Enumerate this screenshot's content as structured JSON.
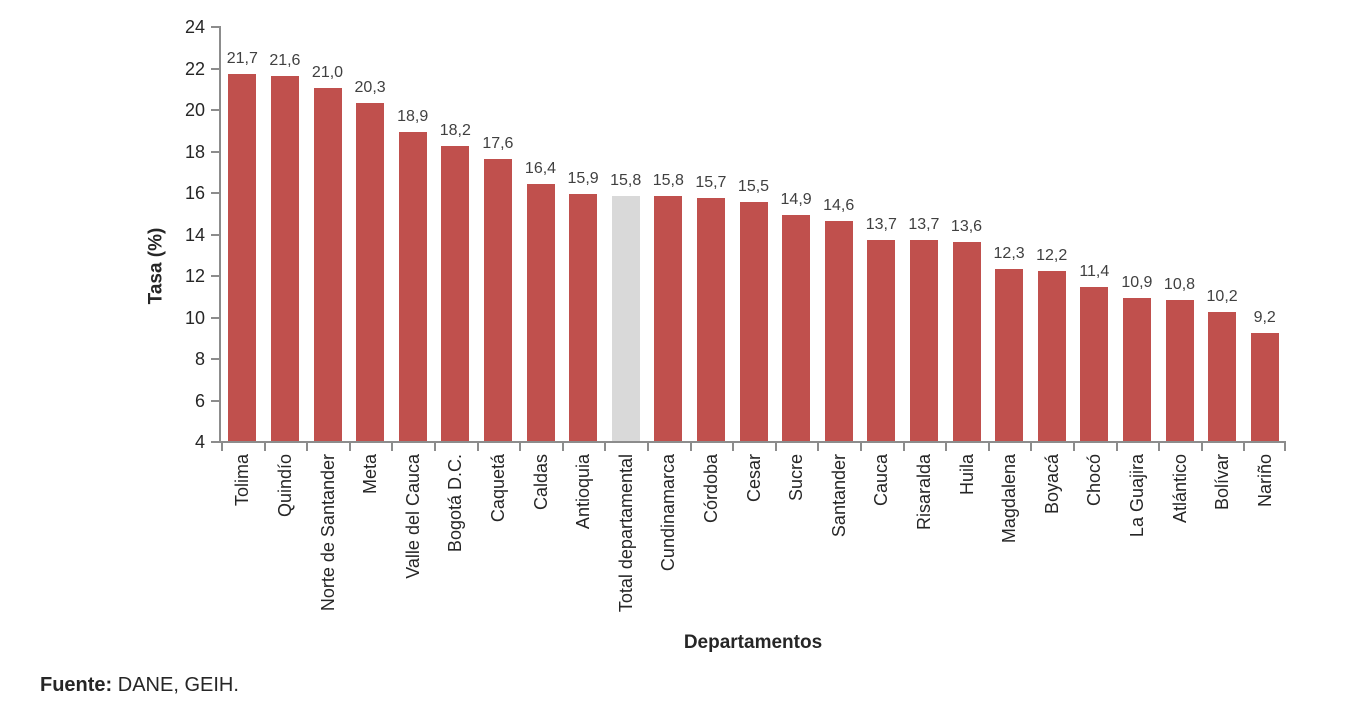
{
  "chart_data": {
    "type": "bar",
    "title": "",
    "xlabel": "Departamentos",
    "ylabel": "Tasa (%)",
    "ylim": [
      4,
      24
    ],
    "ytick_step": 2,
    "grid": false,
    "legend": "none",
    "categories": [
      "Tolima",
      "Quindío",
      "Norte de Santander",
      "Meta",
      "Valle del Cauca",
      "Bogotá D.C.",
      "Caquetá",
      "Caldas",
      "Antioquia",
      "Total departamental",
      "Cundinamarca",
      "Córdoba",
      "Cesar",
      "Sucre",
      "Santander",
      "Cauca",
      "Risaralda",
      "Huila",
      "Magdalena",
      "Boyacá",
      "Chocó",
      "La Guajira",
      "Atlántico",
      "Bolívar",
      "Nariño"
    ],
    "values": [
      21.7,
      21.6,
      21.0,
      20.3,
      18.9,
      18.2,
      17.6,
      16.4,
      15.9,
      15.8,
      15.8,
      15.7,
      15.5,
      14.9,
      14.6,
      13.7,
      13.7,
      13.6,
      12.3,
      12.2,
      11.4,
      10.9,
      10.8,
      10.2,
      9.2
    ],
    "value_labels": [
      "21,7",
      "21,6",
      "21,0",
      "20,3",
      "18,9",
      "18,2",
      "17,6",
      "16,4",
      "15,9",
      "15,8",
      "15,8",
      "15,7",
      "15,5",
      "14,9",
      "14,6",
      "13,7",
      "13,7",
      "13,6",
      "12,3",
      "12,2",
      "11,4",
      "10,9",
      "10,8",
      "10,2",
      "9,2"
    ],
    "highlight_category": "Total departamental",
    "highlight_index": 9,
    "colors": {
      "bar": "#c0504d",
      "highlight_bar": "#d9d9d9",
      "axis": "#8c8c8c",
      "tick_label": "#262626",
      "value_label": "#404040"
    }
  },
  "source": {
    "prefix": "Fuente:",
    "text": " DANE, GEIH."
  }
}
